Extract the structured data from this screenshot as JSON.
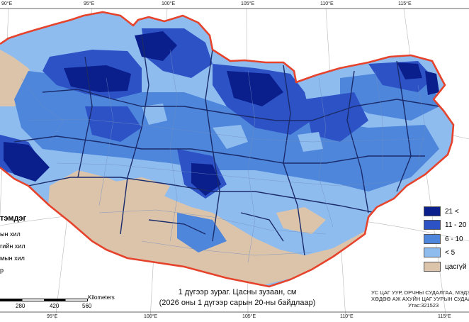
{
  "graticule": {
    "top": [
      "90°E",
      "95°E",
      "100°E",
      "105°E",
      "110°E",
      "115°E"
    ],
    "bottom": [
      "95°E",
      "100°E",
      "105°E",
      "110°E",
      "115°E"
    ]
  },
  "legend": {
    "title": "тэмдэг",
    "items": [
      "ын хил",
      "гийн хил",
      "мын хил",
      "р"
    ]
  },
  "snow_classes": [
    {
      "label": "21 <",
      "color": "#0a1e8c"
    },
    {
      "label": "11 - 20",
      "color": "#2d52c6"
    },
    {
      "label": "6 - 10",
      "color": "#4e86dc"
    },
    {
      "label": "< 5",
      "color": "#8fbcef"
    },
    {
      "label": "цасгүй",
      "color": "#dcc4ab"
    }
  ],
  "scale": {
    "ticks": [
      "280",
      "420",
      "560"
    ],
    "unit": "Kilometers"
  },
  "caption": {
    "line1": "1 дүгээр зураг. Цасны зузаан, см",
    "line2": "(2026 оны 1 дүгээр сарын 20-ны байдлаар)"
  },
  "agency": {
    "line1": "УС ЦАГ УУР, ОРЧНЫ СУДАЛГАА, МЭДЭЭЛ",
    "line2": "ХӨДӨӨ АЖ АХУЙН ЦАГ УУРЫН СУДАЛ",
    "line3": "Утас:321523"
  }
}
